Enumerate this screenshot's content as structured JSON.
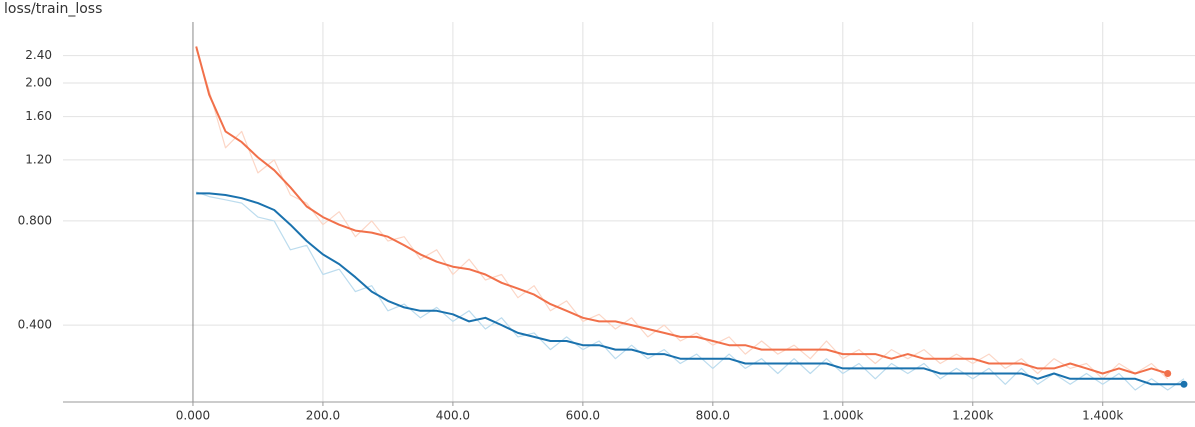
{
  "chart_data": {
    "type": "line",
    "title": "loss/train_loss",
    "x": [
      5,
      25,
      50,
      75,
      100,
      125,
      150,
      175,
      200,
      225,
      250,
      275,
      300,
      325,
      350,
      375,
      400,
      425,
      450,
      475,
      500,
      525,
      550,
      575,
      600,
      625,
      650,
      675,
      700,
      725,
      750,
      775,
      800,
      825,
      850,
      875,
      900,
      925,
      950,
      975,
      1000,
      1025,
      1050,
      1075,
      1100,
      1125,
      1150,
      1175,
      1200,
      1225,
      1250,
      1275,
      1300,
      1325,
      1350,
      1375,
      1400,
      1425,
      1450,
      1475,
      1500,
      1525
    ],
    "series": [
      {
        "color": "#fcd6c6",
        "values": [
          2.5,
          1.9,
          1.3,
          1.45,
          1.1,
          1.2,
          0.95,
          0.9,
          0.78,
          0.85,
          0.72,
          0.8,
          0.7,
          0.72,
          0.62,
          0.66,
          0.56,
          0.62,
          0.54,
          0.56,
          0.48,
          0.52,
          0.44,
          0.47,
          0.41,
          0.43,
          0.39,
          0.42,
          0.37,
          0.4,
          0.36,
          0.38,
          0.35,
          0.37,
          0.33,
          0.36,
          0.33,
          0.35,
          0.32,
          0.36,
          0.32,
          0.34,
          0.31,
          0.34,
          0.32,
          0.34,
          0.31,
          0.33,
          0.31,
          0.33,
          0.3,
          0.32,
          0.29,
          0.32,
          0.3,
          0.31,
          0.28,
          0.31,
          0.29,
          0.31,
          0.28,
          null
        ]
      },
      {
        "color": "#bcdcee",
        "values": [
          0.97,
          0.94,
          0.92,
          0.9,
          0.82,
          0.8,
          0.66,
          0.68,
          0.56,
          0.58,
          0.5,
          0.52,
          0.44,
          0.46,
          0.42,
          0.45,
          0.41,
          0.44,
          0.39,
          0.42,
          0.37,
          0.38,
          0.34,
          0.37,
          0.34,
          0.36,
          0.32,
          0.35,
          0.32,
          0.34,
          0.31,
          0.33,
          0.3,
          0.33,
          0.3,
          0.32,
          0.29,
          0.32,
          0.29,
          0.32,
          0.29,
          0.31,
          0.28,
          0.31,
          0.29,
          0.31,
          0.28,
          0.3,
          0.28,
          0.3,
          0.27,
          0.3,
          0.27,
          0.29,
          0.27,
          0.29,
          0.27,
          0.29,
          0.26,
          0.28,
          0.26,
          0.28
        ]
      },
      {
        "color": "#f1704a",
        "values": [
          2.55,
          1.85,
          1.45,
          1.35,
          1.22,
          1.12,
          1.0,
          0.88,
          0.82,
          0.78,
          0.75,
          0.74,
          0.72,
          0.68,
          0.64,
          0.61,
          0.59,
          0.58,
          0.56,
          0.53,
          0.51,
          0.49,
          0.46,
          0.44,
          0.42,
          0.41,
          0.41,
          0.4,
          0.39,
          0.38,
          0.37,
          0.37,
          0.36,
          0.35,
          0.35,
          0.34,
          0.34,
          0.34,
          0.34,
          0.34,
          0.33,
          0.33,
          0.33,
          0.32,
          0.33,
          0.32,
          0.32,
          0.32,
          0.32,
          0.31,
          0.31,
          0.31,
          0.3,
          0.3,
          0.31,
          0.3,
          0.29,
          0.3,
          0.29,
          0.3,
          0.29,
          null
        ]
      },
      {
        "color": "#1a72ae",
        "values": [
          0.96,
          0.96,
          0.95,
          0.93,
          0.9,
          0.86,
          0.78,
          0.7,
          0.64,
          0.6,
          0.55,
          0.5,
          0.47,
          0.45,
          0.44,
          0.44,
          0.43,
          0.41,
          0.42,
          0.4,
          0.38,
          0.37,
          0.36,
          0.36,
          0.35,
          0.35,
          0.34,
          0.34,
          0.33,
          0.33,
          0.32,
          0.32,
          0.32,
          0.32,
          0.31,
          0.31,
          0.31,
          0.31,
          0.31,
          0.31,
          0.3,
          0.3,
          0.3,
          0.3,
          0.3,
          0.3,
          0.29,
          0.29,
          0.29,
          0.29,
          0.29,
          0.29,
          0.28,
          0.29,
          0.28,
          0.28,
          0.28,
          0.28,
          0.28,
          0.27,
          0.27,
          0.27
        ]
      }
    ],
    "xlim": [
      -200,
      1542
    ],
    "xticks": [
      {
        "value": 0,
        "label": "0.000"
      },
      {
        "value": 200,
        "label": "200.0"
      },
      {
        "value": 400,
        "label": "400.0"
      },
      {
        "value": 600,
        "label": "600.0"
      },
      {
        "value": 800,
        "label": "800.0"
      },
      {
        "value": 1000,
        "label": "1.000k"
      },
      {
        "value": 1200,
        "label": "1.200k"
      },
      {
        "value": 1400,
        "label": "1.400k"
      }
    ],
    "ylim": [
      0.24,
      3.0
    ],
    "ylog": true,
    "yticks": [
      {
        "value": 0.4,
        "label": "0.400"
      },
      {
        "value": 0.8,
        "label": "0.800"
      },
      {
        "value": 1.2,
        "label": "1.20"
      },
      {
        "value": 1.6,
        "label": "1.60"
      },
      {
        "value": 2.0,
        "label": "2.00"
      },
      {
        "value": 2.4,
        "label": "2.40"
      }
    ],
    "grid": true
  }
}
